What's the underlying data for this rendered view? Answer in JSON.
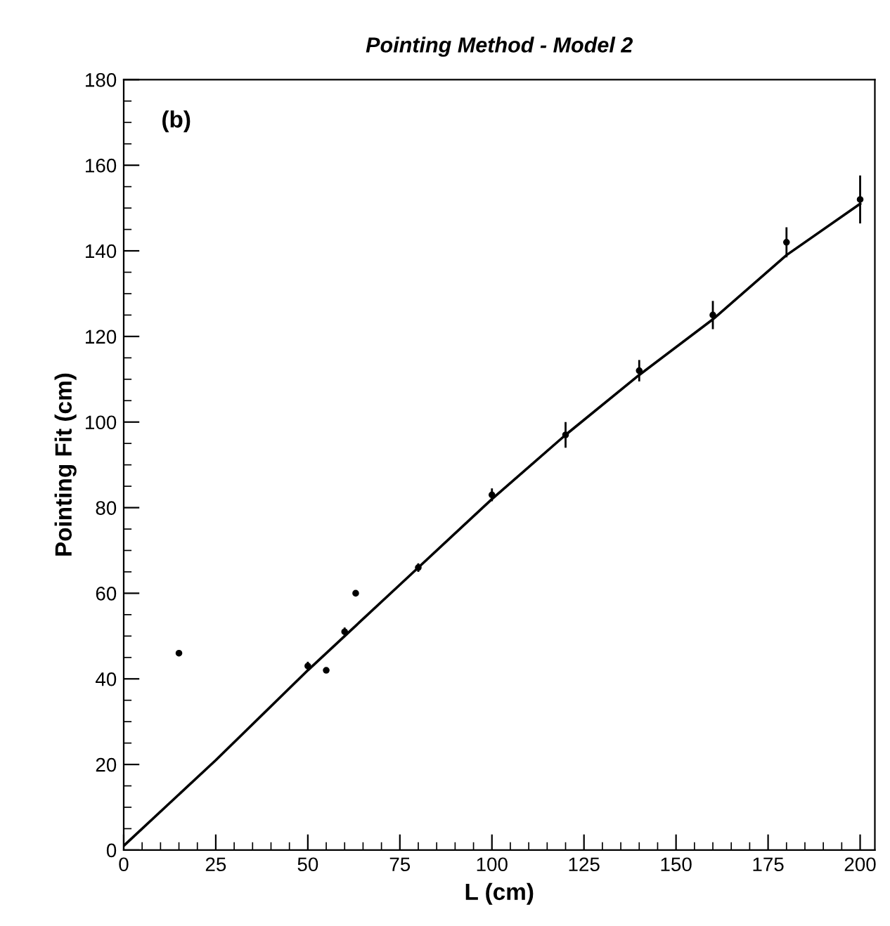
{
  "chart_data": {
    "type": "scatter",
    "title": "Pointing Method - Model 2",
    "xlabel": "L (cm)",
    "ylabel": "Pointing Fit (cm)",
    "annotations": [
      "(b)"
    ],
    "xlim": [
      0,
      204
    ],
    "ylim": [
      0,
      180
    ],
    "xticks": [
      0,
      25,
      50,
      75,
      100,
      125,
      150,
      175,
      200
    ],
    "yticks": [
      0,
      20,
      40,
      60,
      80,
      100,
      120,
      140,
      160,
      180
    ],
    "grid": false,
    "legend": false,
    "marker": "circle",
    "series": [
      {
        "color": "#000000",
        "x": [
          15,
          50,
          55,
          60,
          63,
          80,
          100,
          120,
          140,
          160,
          180,
          200
        ],
        "values": [
          46,
          43,
          42,
          51,
          60,
          66,
          83,
          97,
          112,
          125,
          142,
          152
        ],
        "errors": [
          null,
          1,
          null,
          1,
          null,
          1,
          1.5,
          3,
          2.5,
          3.3,
          3.5,
          5.6
        ]
      },
      {
        "type": "line",
        "color": "#000000",
        "marker": "none",
        "x": [
          0,
          25,
          50,
          75,
          100,
          120,
          140,
          160,
          180,
          200
        ],
        "values": [
          1,
          21,
          42,
          62,
          82,
          97,
          111,
          124,
          139,
          151
        ],
        "line_style": "solid"
      }
    ]
  }
}
